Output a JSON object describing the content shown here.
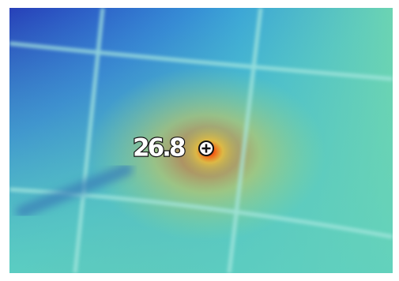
{
  "temperature": "26.8"
}
